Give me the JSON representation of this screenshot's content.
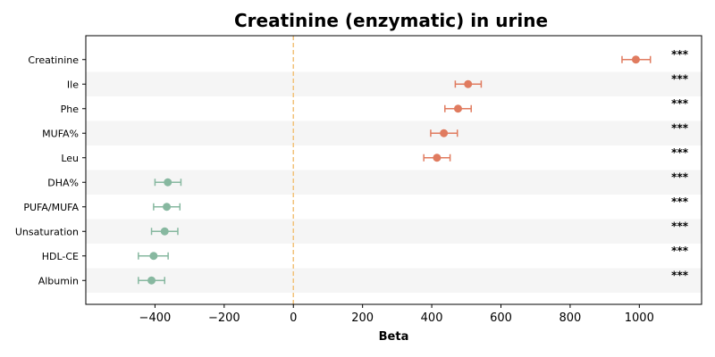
{
  "chart_data": {
    "type": "scatter",
    "title": "Creatinine (enzymatic) in urine",
    "xlabel": "Beta",
    "ylabel": "",
    "xlim": [
      -600,
      1180
    ],
    "xticks": [
      -400,
      -200,
      0,
      200,
      400,
      600,
      800,
      1000
    ],
    "xtick_labels": [
      "−400",
      "−200",
      "0",
      "200",
      "400",
      "600",
      "800",
      "1000"
    ],
    "reference_line": 0,
    "grid": false,
    "positive_color": "#e07b5f",
    "negative_color": "#87b8a0",
    "reference_color": "#f2c27a",
    "band_color": "#f5f5f5",
    "points": [
      {
        "label": "Creatinine",
        "beta": 990,
        "ci_low": 950,
        "ci_high": 1032,
        "sig": "***"
      },
      {
        "label": "Ile",
        "beta": 505,
        "ci_low": 468,
        "ci_high": 543,
        "sig": "***"
      },
      {
        "label": "Phe",
        "beta": 476,
        "ci_low": 438,
        "ci_high": 514,
        "sig": "***"
      },
      {
        "label": "MUFA%",
        "beta": 435,
        "ci_low": 397,
        "ci_high": 474,
        "sig": "***"
      },
      {
        "label": "Leu",
        "beta": 415,
        "ci_low": 377,
        "ci_high": 453,
        "sig": "***"
      },
      {
        "label": "DHA%",
        "beta": -363,
        "ci_low": -400,
        "ci_high": -325,
        "sig": "***"
      },
      {
        "label": "PUFA/MUFA",
        "beta": -366,
        "ci_low": -404,
        "ci_high": -328,
        "sig": "***"
      },
      {
        "label": "Unsaturation",
        "beta": -372,
        "ci_low": -410,
        "ci_high": -334,
        "sig": "***"
      },
      {
        "label": "HDL-CE",
        "beta": -404,
        "ci_low": -448,
        "ci_high": -362,
        "sig": "***"
      },
      {
        "label": "Albumin",
        "beta": -410,
        "ci_low": -448,
        "ci_high": -372,
        "sig": "***"
      }
    ]
  }
}
